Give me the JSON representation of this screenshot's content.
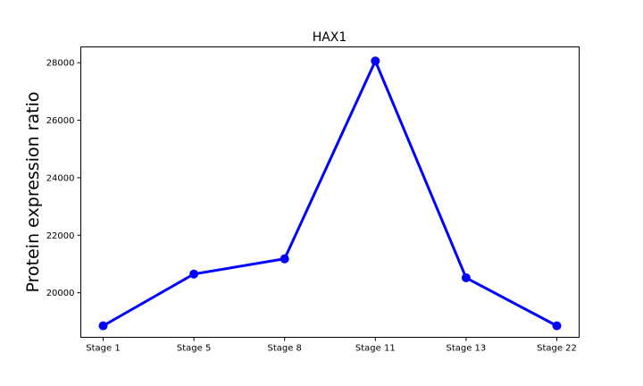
{
  "chart_data": {
    "type": "line",
    "title": "HAX1",
    "xlabel": "",
    "ylabel": "Protein expression ratio",
    "categories": [
      "Stage 1",
      "Stage 5",
      "Stage 8",
      "Stage 11",
      "Stage 13",
      "Stage 22"
    ],
    "series": [
      {
        "values": [
          18850,
          20650,
          21180,
          28060,
          20520,
          18850
        ],
        "color": "#0000ff",
        "marker": "circle"
      }
    ],
    "ylim": [
      18450,
      28550
    ],
    "yticks": [
      20000,
      22000,
      24000,
      26000,
      28000
    ],
    "ytick_labels": [
      "20000",
      "22000",
      "24000",
      "26000",
      "28000"
    ],
    "grid": false,
    "legend": "none"
  }
}
